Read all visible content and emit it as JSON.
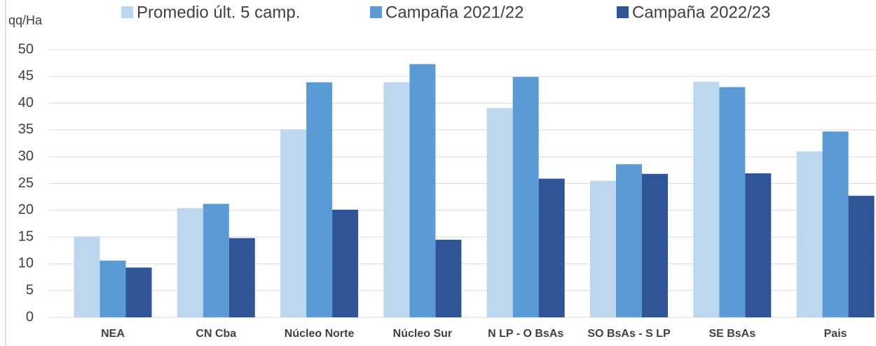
{
  "chart_data": {
    "type": "bar",
    "y_label": "qq/Ha",
    "categories": [
      "NEA",
      "CN Cba",
      "Núcleo Norte",
      "Núcleo Sur",
      "N LP - O BsAs",
      "SO BsAs - S LP",
      "SE BsAs",
      "Pais"
    ],
    "series": [
      {
        "name": "Promedio últ. 5 camp.",
        "color": "#bdd7ee",
        "values": [
          15.1,
          20.4,
          35.1,
          43.9,
          39.1,
          25.5,
          44.0,
          31.0
        ]
      },
      {
        "name": "Campaña 2021/22",
        "color": "#5b9bd5",
        "values": [
          10.6,
          21.2,
          43.9,
          47.3,
          44.9,
          28.6,
          43.0,
          34.7
        ]
      },
      {
        "name": "Campaña 2022/23",
        "color": "#2f5597",
        "values": [
          9.3,
          14.8,
          20.1,
          14.5,
          25.9,
          26.8,
          26.9,
          22.7
        ]
      }
    ],
    "ylim": [
      0,
      50
    ],
    "yticks": [
      0,
      5,
      10,
      15,
      20,
      25,
      30,
      35,
      40,
      45,
      50
    ],
    "grid": true,
    "legend": "top"
  }
}
